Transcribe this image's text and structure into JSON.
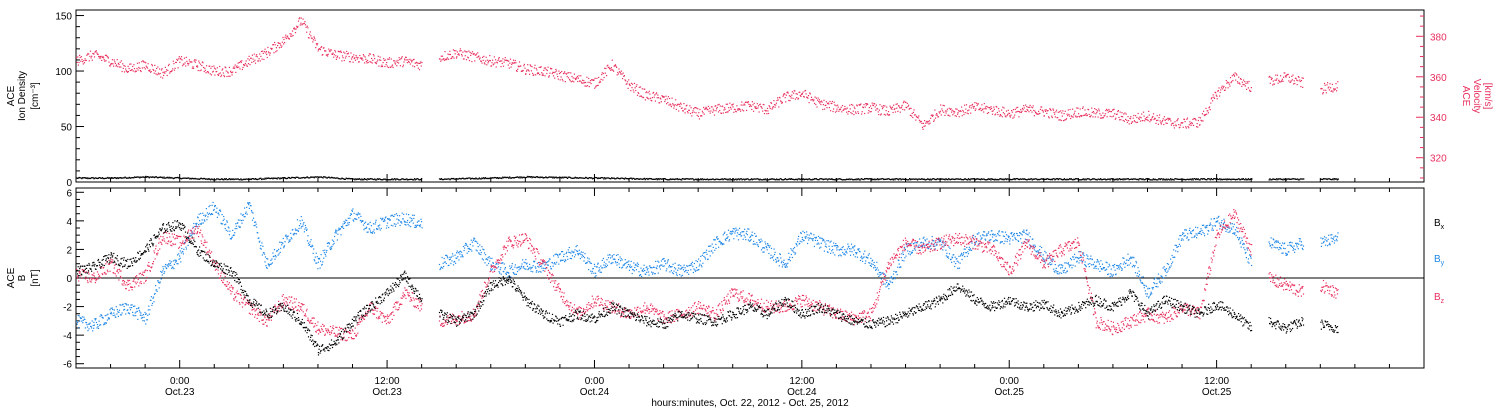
{
  "colors": {
    "black": "#000000",
    "pink": "#e8305e",
    "blue": "#1f87e6"
  },
  "x_axis": {
    "label": "hours:minutes, Oct. 22, 2012 - Oct. 25, 2012",
    "ticks": [
      {
        "time": "0:00",
        "date": "Oct.23",
        "hours": 0
      },
      {
        "time": "12:00",
        "date": "Oct.23",
        "hours": 12
      },
      {
        "time": "0:00",
        "date": "Oct.24",
        "hours": 24
      },
      {
        "time": "12:00",
        "date": "Oct.24",
        "hours": 36
      },
      {
        "time": "0:00",
        "date": "Oct.25",
        "hours": 48
      },
      {
        "time": "12:00",
        "date": "Oct.25",
        "hours": 60
      }
    ]
  },
  "chart_data": [
    {
      "type": "scatter",
      "panel": "top",
      "ylabel_left": [
        "ACE",
        "Ion Density",
        "[cm⁻³]"
      ],
      "ylabel_right": [
        "ACE",
        "Velocity",
        "[km/s]"
      ],
      "left_ylim": [
        0,
        155
      ],
      "left_ticks": [
        "0",
        "50",
        "100",
        "150"
      ],
      "right_ylim": [
        308,
        393
      ],
      "right_ticks": [
        "320",
        "340",
        "360",
        "380"
      ],
      "xlim": [
        -6,
        72
      ],
      "series": [
        {
          "axis": "left",
          "color": "black",
          "x": [
            -6,
            -4,
            -2,
            0,
            2,
            4,
            6,
            8,
            10,
            12,
            14,
            14.5,
            15,
            18,
            20,
            24,
            28,
            32,
            36,
            40,
            44,
            48,
            52,
            56,
            60,
            62,
            62.5,
            63,
            65,
            65.5,
            66,
            67
          ],
          "y": [
            4,
            4,
            5,
            4,
            3,
            3,
            4,
            5,
            3,
            3,
            3,
            null,
            3,
            4,
            5,
            4,
            3,
            3,
            3,
            3,
            3,
            3,
            3,
            3,
            3,
            3,
            null,
            3,
            3,
            null,
            3,
            3
          ]
        },
        {
          "axis": "right",
          "color": "pink",
          "x": [
            -6,
            -5,
            -4,
            -3,
            -2,
            -1,
            0,
            1,
            2,
            3,
            4,
            5,
            6,
            7,
            8,
            9,
            10,
            11,
            12,
            13,
            14,
            14.5,
            15,
            16,
            17,
            18,
            19,
            20,
            21,
            22,
            23,
            24,
            25,
            26,
            27,
            28,
            29,
            30,
            31,
            32,
            33,
            34,
            35,
            36,
            37,
            38,
            39,
            40,
            41,
            42,
            43,
            44,
            45,
            46,
            47,
            48,
            49,
            50,
            51,
            52,
            53,
            54,
            55,
            56,
            57,
            58,
            59,
            60,
            61,
            62,
            62.5,
            63,
            64,
            65,
            65.5,
            66,
            67
          ],
          "y": [
            368,
            371,
            368,
            364,
            366,
            362,
            368,
            366,
            363,
            363,
            368,
            372,
            378,
            388,
            374,
            371,
            370,
            369,
            367,
            368,
            366,
            null,
            370,
            372,
            370,
            368,
            367,
            364,
            363,
            361,
            359,
            357,
            366,
            356,
            351,
            349,
            345,
            342,
            344,
            345,
            346,
            344,
            350,
            352,
            347,
            345,
            344,
            345,
            343,
            346,
            336,
            344,
            343,
            345,
            344,
            342,
            344,
            343,
            341,
            343,
            342,
            342,
            339,
            341,
            338,
            337,
            338,
            352,
            360,
            355,
            null,
            358,
            360,
            357,
            null,
            354,
            356
          ]
        }
      ]
    },
    {
      "type": "scatter",
      "panel": "bottom",
      "ylabel_left": [
        "ACE",
        "B",
        "[nT]"
      ],
      "ylim": [
        -6.3,
        6.3
      ],
      "ticks": [
        "-6",
        "-4",
        "-2",
        "0",
        "2",
        "4",
        "6"
      ],
      "xlim": [
        -6,
        72
      ],
      "legend": [
        "B",
        "B",
        "B"
      ],
      "legend_sub": [
        "x",
        "y",
        "z"
      ],
      "series": [
        {
          "name": "Bx",
          "color": "black",
          "x": [
            -6,
            -5,
            -4,
            -3,
            -2,
            -1,
            0,
            1,
            2,
            3,
            4,
            5,
            6,
            7,
            8,
            9,
            10,
            11,
            12,
            13,
            14,
            14.5,
            15,
            16,
            17,
            18,
            19,
            20,
            21,
            22,
            23,
            24,
            25,
            26,
            27,
            28,
            29,
            30,
            31,
            32,
            33,
            34,
            35,
            36,
            37,
            38,
            39,
            40,
            41,
            42,
            43,
            44,
            45,
            46,
            47,
            48,
            49,
            50,
            51,
            52,
            53,
            54,
            55,
            56,
            57,
            58,
            59,
            60,
            61,
            62,
            62.5,
            63,
            64,
            65,
            65.5,
            66,
            67
          ],
          "y": [
            0.5,
            0.8,
            1.5,
            1.0,
            2.0,
            3.5,
            3.8,
            2.0,
            1.0,
            0.5,
            -1.5,
            -2.5,
            -2.0,
            -3.0,
            -5.0,
            -4.5,
            -3.0,
            -2.0,
            -1.0,
            0.2,
            -1.5,
            null,
            -2.5,
            -3.0,
            -2.5,
            -0.5,
            0.0,
            -1.5,
            -2.5,
            -3.0,
            -2.5,
            -2.8,
            -2.0,
            -2.5,
            -3.0,
            -3.2,
            -2.5,
            -2.8,
            -3.0,
            -2.5,
            -2.0,
            -2.5,
            -1.5,
            -2.5,
            -2.0,
            -2.5,
            -3.0,
            -3.2,
            -3.0,
            -2.5,
            -2.0,
            -1.5,
            -0.5,
            -1.5,
            -2.0,
            -1.5,
            -2.0,
            -1.8,
            -2.5,
            -2.0,
            -1.5,
            -2.0,
            -1.0,
            -2.5,
            -1.5,
            -2.0,
            -2.5,
            -1.8,
            -2.5,
            -3.5,
            null,
            -3.0,
            -3.5,
            -3.0,
            null,
            -3.2,
            -3.5
          ]
        },
        {
          "name": "By",
          "color": "blue",
          "x": [
            -6,
            -5,
            -4,
            -3,
            -2,
            -1,
            0,
            1,
            2,
            3,
            4,
            5,
            6,
            7,
            8,
            9,
            10,
            11,
            12,
            13,
            14,
            14.5,
            15,
            16,
            17,
            18,
            19,
            20,
            21,
            22,
            23,
            24,
            25,
            26,
            27,
            28,
            29,
            30,
            31,
            32,
            33,
            34,
            35,
            36,
            37,
            38,
            39,
            40,
            41,
            42,
            43,
            44,
            45,
            46,
            47,
            48,
            49,
            50,
            51,
            52,
            53,
            54,
            55,
            56,
            57,
            58,
            59,
            60,
            61,
            62,
            62.5,
            63,
            64,
            65,
            65.5,
            66,
            67
          ],
          "y": [
            -3.0,
            -3.3,
            -2.5,
            -2.0,
            -2.8,
            0.5,
            1.5,
            4.0,
            5.0,
            3.0,
            5.2,
            1.0,
            2.5,
            4.0,
            1.0,
            3.0,
            4.5,
            3.5,
            4.0,
            4.2,
            3.8,
            null,
            1.0,
            1.5,
            2.5,
            1.0,
            0.5,
            1.0,
            0.8,
            1.5,
            2.0,
            0.5,
            1.5,
            0.8,
            0.5,
            1.0,
            0.5,
            1.0,
            2.5,
            3.2,
            3.0,
            2.0,
            1.0,
            3.0,
            2.5,
            2.0,
            2.0,
            1.2,
            -0.5,
            2.0,
            2.5,
            2.5,
            1.0,
            2.8,
            3.0,
            2.8,
            3.0,
            1.5,
            0.5,
            1.5,
            1.0,
            0.5,
            1.5,
            -1.0,
            0.5,
            3.0,
            3.2,
            4.0,
            3.5,
            1.0,
            null,
            2.5,
            2.0,
            2.5,
            null,
            2.5,
            2.8
          ]
        },
        {
          "name": "Bz",
          "color": "pink",
          "x": [
            -6,
            -5,
            -4,
            -3,
            -2,
            -1,
            0,
            1,
            2,
            3,
            4,
            5,
            6,
            7,
            8,
            9,
            10,
            11,
            12,
            13,
            14,
            14.5,
            15,
            16,
            17,
            18,
            19,
            20,
            21,
            22,
            23,
            24,
            25,
            26,
            27,
            28,
            29,
            30,
            31,
            32,
            33,
            34,
            35,
            36,
            37,
            38,
            39,
            40,
            41,
            42,
            43,
            44,
            45,
            46,
            47,
            48,
            49,
            50,
            51,
            52,
            53,
            54,
            55,
            56,
            57,
            58,
            59,
            60,
            61,
            62,
            62.5,
            63,
            64,
            65,
            65.5,
            66,
            67
          ],
          "y": [
            0.3,
            0.0,
            1.0,
            -0.5,
            0.2,
            3.0,
            2.5,
            3.5,
            1.0,
            -1.0,
            -2.0,
            -3.0,
            -1.5,
            -2.0,
            -3.5,
            -3.8,
            -4.0,
            -2.0,
            -3.0,
            -1.0,
            -2.0,
            null,
            -3.0,
            -2.8,
            -2.5,
            0.5,
            2.5,
            2.8,
            1.0,
            -1.0,
            -2.5,
            -1.5,
            -2.0,
            -2.5,
            -2.0,
            -2.8,
            -2.5,
            -2.0,
            -2.5,
            -1.0,
            -1.5,
            -2.0,
            -2.0,
            -1.5,
            -2.0,
            -2.5,
            -2.8,
            -2.5,
            1.0,
            2.5,
            2.0,
            2.5,
            2.8,
            2.5,
            2.0,
            0.5,
            2.5,
            1.0,
            2.0,
            2.5,
            -3.0,
            -3.5,
            -3.0,
            -2.5,
            -2.8,
            -2.0,
            -2.5,
            3.0,
            4.5,
            2.0,
            null,
            0.0,
            -0.5,
            -1.0,
            null,
            -0.5,
            -1.0
          ]
        }
      ]
    }
  ]
}
